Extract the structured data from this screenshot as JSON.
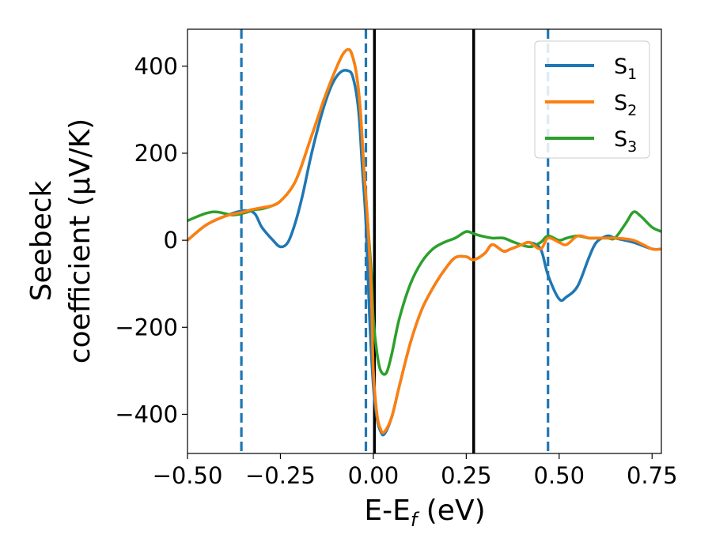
{
  "chart_data": {
    "type": "line",
    "xlabel": "E-E_f (eV)",
    "xlabel_parts": {
      "main": "E-E",
      "sub": "f",
      "unit": " (eV)"
    },
    "ylabel_line1": "Seebeck",
    "ylabel_line2": "coefficient  (μV/K)",
    "xlim": [
      -0.5,
      0.775
    ],
    "ylim": [
      -490,
      485
    ],
    "xticks": [
      -0.5,
      -0.25,
      0.0,
      0.25,
      0.5,
      0.75
    ],
    "xtick_labels": [
      "−0.50",
      "−0.25",
      "0.00",
      "0.25",
      "0.50",
      "0.75"
    ],
    "yticks": [
      -400,
      -200,
      0,
      200,
      400
    ],
    "ytick_labels": [
      "−400",
      "−200",
      "0",
      "200",
      "400"
    ],
    "legend_position": "top-right",
    "grid": false,
    "vlines": [
      {
        "x": -0.355,
        "style": "dashed",
        "color": "#1f77b4"
      },
      {
        "x": -0.02,
        "style": "dashed",
        "color": "#1f77b4"
      },
      {
        "x": 0.003,
        "style": "solid",
        "color": "#000000"
      },
      {
        "x": 0.27,
        "style": "solid",
        "color": "#000000"
      },
      {
        "x": 0.47,
        "style": "dashed",
        "color": "#1f77b4"
      }
    ],
    "series": [
      {
        "name": "S1",
        "legend_base": "S",
        "legend_sub": "1",
        "color": "#1f77b4",
        "x": [
          -0.5,
          -0.45,
          -0.4,
          -0.35,
          -0.32,
          -0.3,
          -0.27,
          -0.25,
          -0.23,
          -0.21,
          -0.19,
          -0.17,
          -0.15,
          -0.13,
          -0.11,
          -0.09,
          -0.07,
          -0.055,
          -0.04,
          -0.03,
          -0.02,
          -0.01,
          0.0,
          0.01,
          0.02,
          0.03,
          0.05,
          0.07,
          0.1,
          0.13,
          0.16,
          0.19,
          0.22,
          0.25,
          0.27,
          0.3,
          0.32,
          0.35,
          0.37,
          0.4,
          0.42,
          0.45,
          0.47,
          0.5,
          0.52,
          0.55,
          0.58,
          0.6,
          0.63,
          0.65,
          0.7,
          0.75,
          0.775
        ],
        "y": [
          0,
          35,
          55,
          68,
          62,
          30,
          0,
          -15,
          -5,
          40,
          105,
          185,
          255,
          315,
          360,
          385,
          390,
          375,
          300,
          170,
          40,
          -180,
          -335,
          -410,
          -440,
          -445,
          -405,
          -335,
          -235,
          -160,
          -110,
          -70,
          -40,
          -38,
          -45,
          -30,
          -10,
          -25,
          -20,
          -10,
          -5,
          -20,
          -80,
          -135,
          -130,
          -105,
          -40,
          -5,
          10,
          5,
          -5,
          -20,
          -20
        ]
      },
      {
        "name": "S2",
        "legend_base": "S",
        "legend_sub": "2",
        "color": "#ff7f0e",
        "x": [
          -0.5,
          -0.45,
          -0.4,
          -0.35,
          -0.33,
          -0.3,
          -0.27,
          -0.25,
          -0.22,
          -0.2,
          -0.17,
          -0.15,
          -0.13,
          -0.1,
          -0.08,
          -0.065,
          -0.055,
          -0.045,
          -0.035,
          -0.025,
          -0.015,
          -0.005,
          0.0,
          0.01,
          0.02,
          0.03,
          0.05,
          0.07,
          0.1,
          0.13,
          0.16,
          0.19,
          0.22,
          0.25,
          0.27,
          0.3,
          0.32,
          0.35,
          0.37,
          0.4,
          0.42,
          0.45,
          0.47,
          0.5,
          0.52,
          0.55,
          0.58,
          0.6,
          0.63,
          0.65,
          0.7,
          0.75,
          0.775
        ],
        "y": [
          0,
          35,
          55,
          65,
          70,
          75,
          80,
          90,
          120,
          155,
          230,
          280,
          330,
          395,
          430,
          438,
          420,
          380,
          300,
          160,
          40,
          -130,
          -300,
          -400,
          -435,
          -440,
          -405,
          -335,
          -235,
          -160,
          -110,
          -70,
          -40,
          -38,
          -45,
          -30,
          -10,
          -25,
          -20,
          -10,
          -5,
          -20,
          5,
          -5,
          -10,
          10,
          5,
          5,
          5,
          5,
          0,
          -20,
          -20
        ]
      },
      {
        "name": "S3",
        "legend_base": "S",
        "legend_sub": "3",
        "color": "#2ca02c",
        "x": [
          -0.5,
          -0.45,
          -0.42,
          -0.38,
          -0.35,
          -0.32,
          -0.3,
          -0.27,
          -0.25,
          -0.22,
          -0.2,
          -0.17,
          -0.15,
          -0.13,
          -0.1,
          -0.08,
          -0.065,
          -0.055,
          -0.045,
          -0.035,
          -0.025,
          -0.015,
          -0.005,
          0.0,
          0.01,
          0.02,
          0.035,
          0.05,
          0.07,
          0.1,
          0.13,
          0.16,
          0.19,
          0.22,
          0.25,
          0.27,
          0.29,
          0.32,
          0.35,
          0.38,
          0.42,
          0.45,
          0.47,
          0.5,
          0.52,
          0.55,
          0.58,
          0.6,
          0.63,
          0.65,
          0.68,
          0.7,
          0.72,
          0.75,
          0.775
        ],
        "y": [
          45,
          62,
          65,
          58,
          62,
          70,
          72,
          80,
          90,
          120,
          155,
          230,
          280,
          330,
          395,
          430,
          438,
          420,
          380,
          300,
          160,
          40,
          -80,
          -180,
          -260,
          -300,
          -305,
          -260,
          -180,
          -100,
          -50,
          -20,
          -5,
          5,
          20,
          15,
          10,
          5,
          5,
          -5,
          -15,
          -5,
          10,
          0,
          5,
          10,
          5,
          5,
          5,
          5,
          40,
          65,
          55,
          30,
          20
        ]
      }
    ]
  }
}
